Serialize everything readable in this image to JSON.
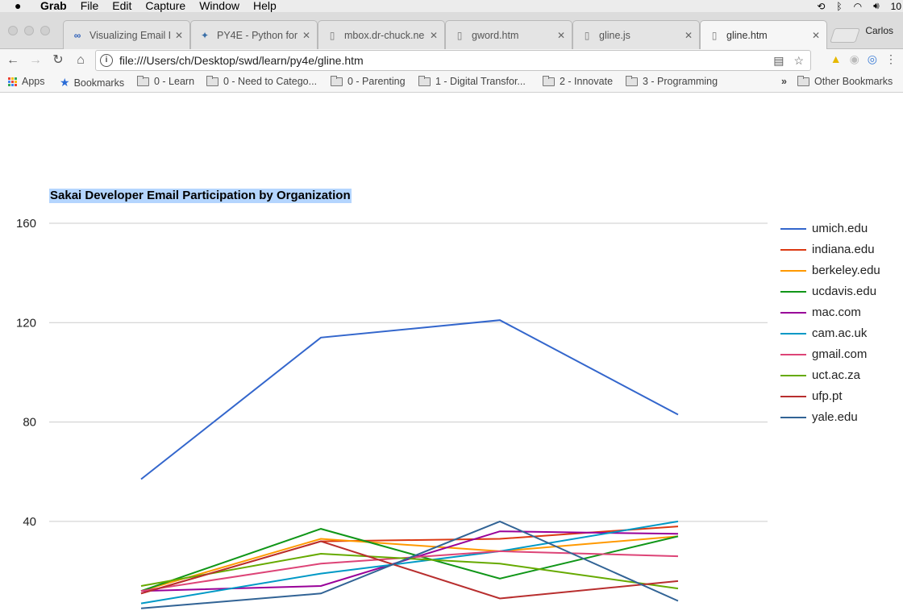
{
  "menubar": {
    "app": "Grab",
    "items": [
      "File",
      "Edit",
      "Capture",
      "Window",
      "Help"
    ],
    "clock": "10"
  },
  "browser": {
    "tabs": [
      {
        "label": "Visualizing Email D",
        "icon": "infinity-icon",
        "active": false
      },
      {
        "label": "PY4E - Python for",
        "icon": "python-icon",
        "active": false
      },
      {
        "label": "mbox.dr-chuck.ne",
        "icon": "page-icon",
        "active": false
      },
      {
        "label": "gword.htm",
        "icon": "page-icon",
        "active": false
      },
      {
        "label": "gline.js",
        "icon": "page-icon",
        "active": false
      },
      {
        "label": "gline.htm",
        "icon": "page-icon",
        "active": true
      }
    ],
    "profile": "Carlos",
    "url": "file:///Users/ch/Desktop/swd/learn/py4e/gline.htm"
  },
  "bookmarks": {
    "items": [
      {
        "label": "Apps",
        "icon": "apps-grid-icon"
      },
      {
        "label": "Bookmarks",
        "icon": "star-icon"
      },
      {
        "label": "0 - Learn",
        "icon": "folder-icon"
      },
      {
        "label": "0 - Need to Catego...",
        "icon": "folder-icon"
      },
      {
        "label": "0 - Parenting",
        "icon": "folder-icon"
      },
      {
        "label": "1 - Digital Transfor...",
        "icon": "folder-icon"
      },
      {
        "label": "2 - Innovate",
        "icon": "folder-icon"
      },
      {
        "label": "3 - Programming",
        "icon": "folder-icon"
      }
    ],
    "overflow": "»",
    "other": "Other Bookmarks"
  },
  "chart_data": {
    "type": "line",
    "title": "Sakai Developer Email Participation by Organization",
    "xlabel": "",
    "ylabel": "",
    "ylim": [
      0,
      160
    ],
    "yticks": [
      40,
      80,
      120,
      160
    ],
    "grid": true,
    "legend_position": "right",
    "x": [
      1,
      2,
      3,
      4
    ],
    "series": [
      {
        "name": "umich.edu",
        "color": "#3366cc",
        "values": [
          57,
          114,
          121,
          83
        ]
      },
      {
        "name": "indiana.edu",
        "color": "#dc3912",
        "values": [
          11,
          32,
          33,
          38
        ]
      },
      {
        "name": "berkeley.edu",
        "color": "#ff9900",
        "values": [
          12,
          33,
          28,
          34
        ]
      },
      {
        "name": "ucdavis.edu",
        "color": "#109618",
        "values": [
          12,
          37,
          17,
          34
        ]
      },
      {
        "name": "mac.com",
        "color": "#990099",
        "values": [
          12,
          14,
          36,
          35
        ]
      },
      {
        "name": "cam.ac.uk",
        "color": "#0099c6",
        "values": [
          7,
          19,
          28,
          40
        ]
      },
      {
        "name": "gmail.com",
        "color": "#dd4477",
        "values": [
          12,
          23,
          28,
          26
        ]
      },
      {
        "name": "uct.ac.za",
        "color": "#66aa00",
        "values": [
          14,
          27,
          23,
          13
        ]
      },
      {
        "name": "ufp.pt",
        "color": "#b82e2e",
        "values": [
          11,
          32,
          9,
          16
        ]
      },
      {
        "name": "yale.edu",
        "color": "#316395",
        "values": [
          5,
          11,
          40,
          8
        ]
      }
    ]
  }
}
